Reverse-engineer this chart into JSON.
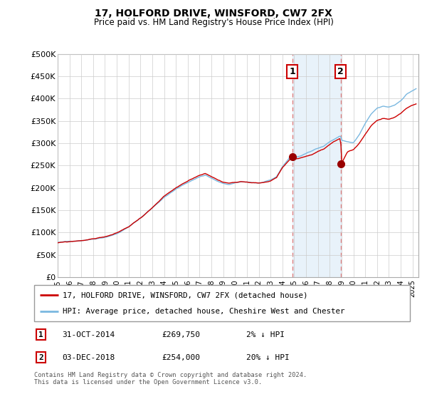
{
  "title": "17, HOLFORD DRIVE, WINSFORD, CW7 2FX",
  "subtitle": "Price paid vs. HM Land Registry's House Price Index (HPI)",
  "ylabel_ticks": [
    "£0",
    "£50K",
    "£100K",
    "£150K",
    "£200K",
    "£250K",
    "£300K",
    "£350K",
    "£400K",
    "£450K",
    "£500K"
  ],
  "ytick_values": [
    0,
    50000,
    100000,
    150000,
    200000,
    250000,
    300000,
    350000,
    400000,
    450000,
    500000
  ],
  "ylim": [
    0,
    500000
  ],
  "xlim_start": 1995.0,
  "xlim_end": 2025.5,
  "sale1_date": 2014.83,
  "sale1_price": 269750,
  "sale1_label": "1",
  "sale2_date": 2018.92,
  "sale2_price": 254000,
  "sale2_label": "2",
  "hpi_line_color": "#7ab8e0",
  "price_line_color": "#cc0000",
  "sale_marker_color": "#990000",
  "shade_color": "#daeaf7",
  "shade_alpha": 0.6,
  "dashed_line_color": "#e08080",
  "legend_line1": "17, HOLFORD DRIVE, WINSFORD, CW7 2FX (detached house)",
  "legend_line2": "HPI: Average price, detached house, Cheshire West and Chester",
  "footer": "Contains HM Land Registry data © Crown copyright and database right 2024.\nThis data is licensed under the Open Government Licence v3.0.",
  "bg_color": "#ffffff",
  "grid_color": "#cccccc",
  "hpi_anchors_x": [
    1995.0,
    1996.0,
    1997.0,
    1998.0,
    1999.0,
    2000.0,
    2001.0,
    2002.0,
    2003.0,
    2004.0,
    2005.0,
    2006.0,
    2007.0,
    2007.5,
    2008.0,
    2008.5,
    2009.0,
    2009.5,
    2010.0,
    2010.5,
    2011.0,
    2011.5,
    2012.0,
    2012.5,
    2013.0,
    2013.5,
    2014.0,
    2014.83,
    2015.0,
    2015.5,
    2016.0,
    2016.5,
    2017.0,
    2017.5,
    2018.0,
    2018.5,
    2018.92,
    2019.0,
    2019.5,
    2020.0,
    2020.5,
    2021.0,
    2021.5,
    2022.0,
    2022.5,
    2023.0,
    2023.5,
    2024.0,
    2024.5,
    2025.0,
    2025.3
  ],
  "hpi_anchors_y": [
    78000,
    80000,
    83000,
    87000,
    92000,
    100000,
    115000,
    135000,
    158000,
    182000,
    200000,
    215000,
    228000,
    232000,
    225000,
    218000,
    212000,
    210000,
    213000,
    215000,
    215000,
    214000,
    213000,
    215000,
    218000,
    225000,
    248000,
    276000,
    268000,
    272000,
    278000,
    283000,
    290000,
    295000,
    305000,
    312000,
    318000,
    308000,
    305000,
    302000,
    320000,
    345000,
    365000,
    378000,
    382000,
    380000,
    385000,
    395000,
    410000,
    418000,
    422000
  ],
  "price_anchors_x": [
    1995.0,
    1996.0,
    1997.0,
    1998.0,
    1999.0,
    2000.0,
    2001.0,
    2002.0,
    2003.0,
    2004.0,
    2005.0,
    2006.0,
    2007.0,
    2007.5,
    2008.0,
    2008.5,
    2009.0,
    2009.5,
    2010.0,
    2010.5,
    2011.0,
    2011.5,
    2012.0,
    2012.5,
    2013.0,
    2013.5,
    2014.0,
    2014.83,
    2015.0,
    2015.5,
    2016.0,
    2016.5,
    2017.0,
    2017.5,
    2018.0,
    2018.5,
    2018.92,
    2019.0,
    2019.5,
    2020.0,
    2020.5,
    2021.0,
    2021.5,
    2022.0,
    2022.5,
    2023.0,
    2023.5,
    2024.0,
    2024.5,
    2025.0,
    2025.3
  ],
  "price_anchors_y": [
    77000,
    79000,
    82000,
    86000,
    91000,
    99000,
    113000,
    133000,
    156000,
    180000,
    198000,
    212000,
    226000,
    230000,
    224000,
    217000,
    211000,
    209000,
    212000,
    214000,
    214000,
    213000,
    212000,
    214000,
    217000,
    224000,
    246000,
    269750,
    265000,
    268000,
    272000,
    276000,
    283000,
    288000,
    297000,
    304000,
    310000,
    254000,
    280000,
    285000,
    300000,
    320000,
    340000,
    352000,
    356000,
    354000,
    358000,
    366000,
    378000,
    385000,
    388000
  ]
}
